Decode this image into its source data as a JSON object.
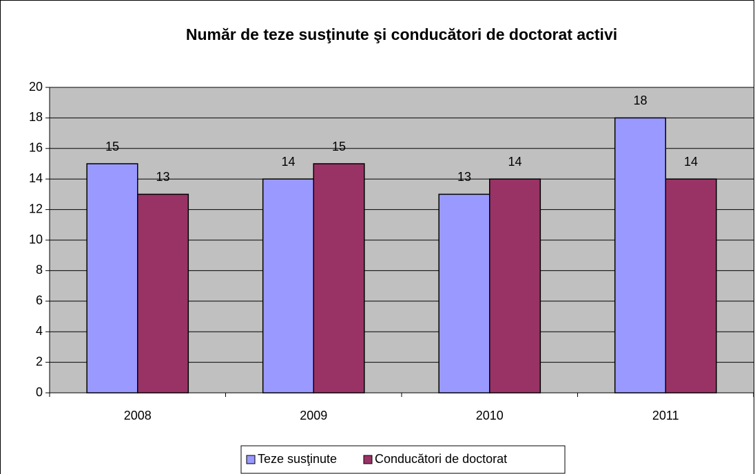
{
  "chart_data": {
    "type": "bar",
    "title": "Număr de teze susţinute şi conducători de doctorat activi",
    "categories": [
      "2008",
      "2009",
      "2010",
      "2011"
    ],
    "series": [
      {
        "name": "Teze susţinute",
        "color": "#9999ff",
        "values": [
          15,
          14,
          13,
          18
        ]
      },
      {
        "name": "Conducători de doctorat",
        "color": "#993366",
        "values": [
          13,
          15,
          14,
          14
        ]
      }
    ],
    "ylim": [
      0,
      20
    ],
    "yticks": [
      0,
      2,
      4,
      6,
      8,
      10,
      12,
      14,
      16,
      18,
      20
    ],
    "grid": true,
    "plot_background": "#c0c0c0",
    "legend": "bottom"
  }
}
